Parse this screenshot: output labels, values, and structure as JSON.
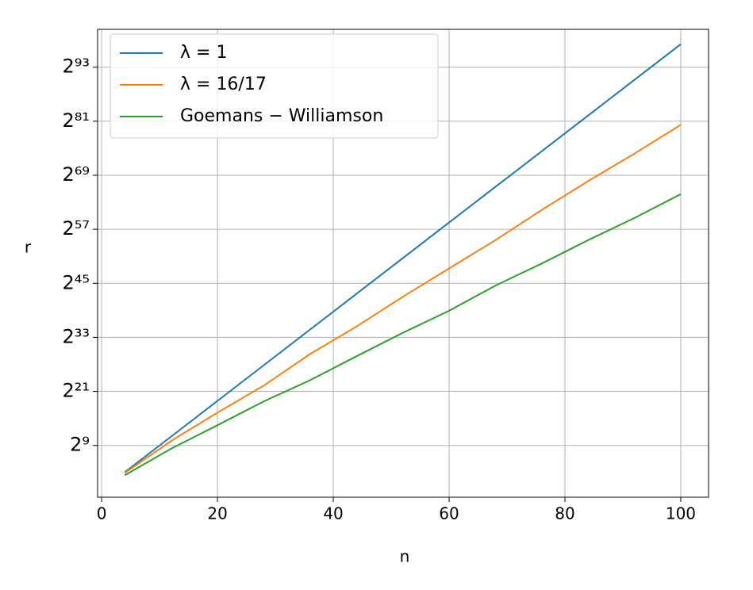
{
  "chart_data": {
    "type": "line",
    "xlabel": "n",
    "ylabel": "r",
    "x": [
      4,
      12,
      20,
      28,
      36,
      44,
      52,
      60,
      68,
      76,
      84,
      92,
      100
    ],
    "series": [
      {
        "name": "λ = 1",
        "color": "#1f77b4",
        "values": [
          8.34,
          2020,
          489000,
          118500000.0,
          28690000000.0,
          6949000000000.0,
          1682000000000000.0,
          4.076e+17,
          9.873e+19,
          2.391e+22,
          5.789e+24,
          1.403e+27,
          3.397e+29
        ]
      },
      {
        "name": "λ = 16/17",
        "color": "#ff7f0e",
        "values": [
          7.46,
          1024,
          80700,
          5164000.0,
          660900000.0,
          45340000000.0,
          4398000000000.0,
          346500000000000.0,
          2.73e+16,
          2.839e+18,
          2.398e+20,
          1.644e+22,
          1.389e+24
        ]
      },
      {
        "name": "Goemans − Williamson",
        "color": "#2ca02c",
        "values": [
          5.28,
          315,
          11585,
          456400,
          11860000.0,
          467400000.0,
          17180000000.0,
          513000000000.0,
          24880000000000.0,
          742900000000000.0,
          2.73e+16,
          8.153e+17,
          3.212e+19
        ]
      }
    ],
    "xlim": [
      -0.7,
      104.8
    ],
    "xticks": [
      0,
      20,
      40,
      60,
      80,
      100
    ],
    "ylim": [
      0.177,
      3.345e+30
    ],
    "yscale": "log",
    "log_base": 2,
    "yticks": [
      {
        "value": 512,
        "label": "2⁹"
      },
      {
        "value": 2097152,
        "label": "2²¹"
      },
      {
        "value": 8589934592,
        "label": "2³³"
      },
      {
        "value": 35184372088832,
        "label": "2⁴⁵"
      },
      {
        "value": 144115188075855872,
        "label": "2⁵⁷"
      },
      {
        "value": 5.902958103587057e+20,
        "label": "2⁶⁹"
      },
      {
        "value": 2.4178516392292583e+24,
        "label": "2⁸¹"
      },
      {
        "value": 9.903520314283042e+27,
        "label": "2⁹³"
      }
    ],
    "grid": true,
    "legend": "upper left"
  }
}
